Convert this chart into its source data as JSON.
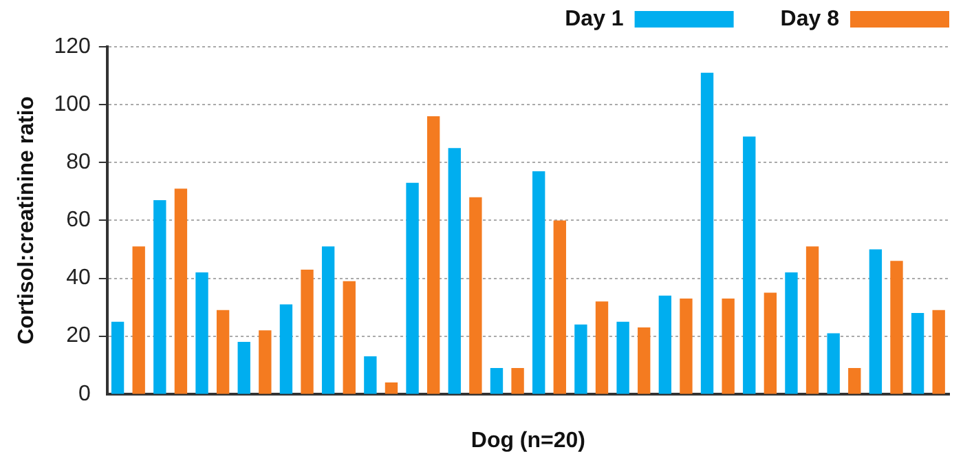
{
  "chart_data": {
    "type": "bar",
    "xlabel": "Dog (n=20)",
    "ylabel": "Cortisol:creatinine ratio",
    "categories": [
      null,
      null,
      null,
      null,
      null,
      null,
      null,
      null,
      null,
      null,
      null,
      null,
      null,
      null,
      null,
      null,
      null,
      null,
      null,
      null
    ],
    "series": [
      {
        "name": "Day 1",
        "color": "#00aeef",
        "values": [
          25,
          67,
          42,
          18,
          31,
          51,
          13,
          73,
          85,
          9,
          77,
          24,
          25,
          34,
          111,
          89,
          42,
          21,
          50,
          28
        ]
      },
      {
        "name": "Day 8",
        "color": "#f47b20",
        "values": [
          51,
          71,
          29,
          22,
          43,
          39,
          4,
          96,
          68,
          9,
          60,
          32,
          23,
          33,
          33,
          35,
          51,
          9,
          46,
          29
        ]
      }
    ],
    "ylim": [
      0,
      120
    ],
    "yticks": [
      0,
      20,
      40,
      60,
      80,
      100,
      120
    ],
    "grid": "y",
    "legend": "top right"
  }
}
